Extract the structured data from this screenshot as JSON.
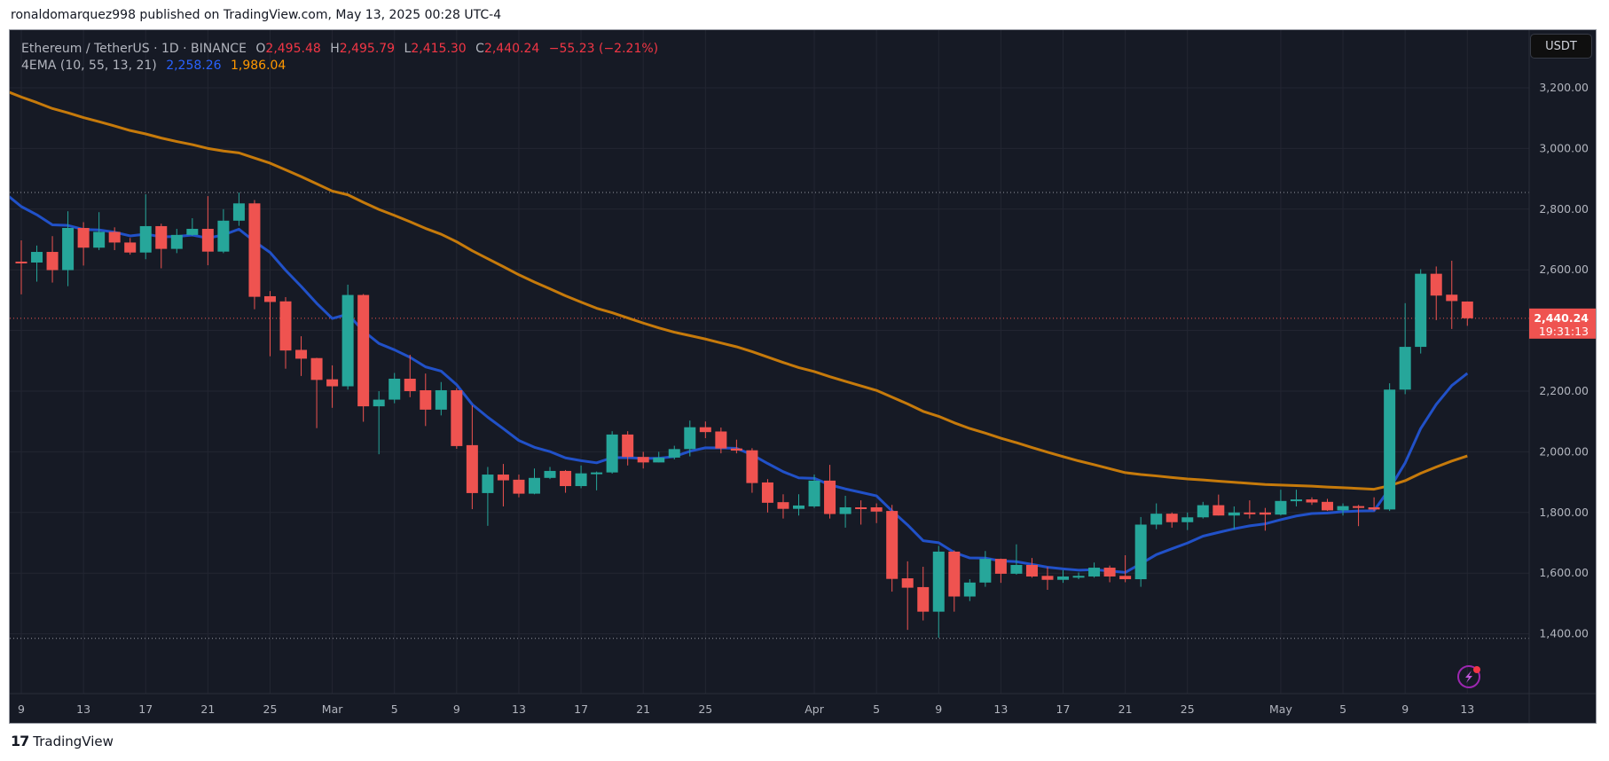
{
  "caption": "ronaldomarquez998 published on TradingView.com, May 13, 2025 00:28 UTC-4",
  "legend": {
    "symbol": "Ethereum / TetherUS · 1D · BINANCE",
    "open_label": "O",
    "open": "2,495.48",
    "high_label": "H",
    "high": "2,495.79",
    "low_label": "L",
    "low": "2,415.30",
    "close_label": "C",
    "close": "2,440.24",
    "change": "−55.23 (−2.21%)",
    "indicator": "4EMA (10, 55, 13, 21)",
    "ema_fast": "2,258.26",
    "ema_slow": "1,986.04"
  },
  "currency_button": "USDT",
  "price_label": {
    "price": "2,440.24",
    "countdown": "19:31:13"
  },
  "logo_text": "TradingView",
  "colors": {
    "up": "#26a69a",
    "down": "#ef5350",
    "ema_fast": "#2151c8",
    "ema_slow": "#c67a0b",
    "bg": "#161a25",
    "grid": "#232632",
    "text": "#b2b5be"
  },
  "icons": {
    "alert": "lightning-icon"
  },
  "chart_data": {
    "type": "candlestick",
    "title": "Ethereum / TetherUS · 1D · BINANCE",
    "ylim": [
      1250,
      3330
    ],
    "y_ticks": [
      "3,200.00",
      "3,000.00",
      "2,800.00",
      "2,600.00",
      "2,200.00",
      "2,000.00",
      "1,800.00",
      "1,600.00",
      "1,400.00"
    ],
    "y_tick_values": [
      3200,
      3000,
      2800,
      2600,
      2200,
      2000,
      1800,
      1600,
      1400
    ],
    "x_ticks": [
      {
        "label": "9",
        "day": 0
      },
      {
        "label": "13",
        "day": 4
      },
      {
        "label": "17",
        "day": 8
      },
      {
        "label": "21",
        "day": 12
      },
      {
        "label": "25",
        "day": 16
      },
      {
        "label": "Mar",
        "day": 20
      },
      {
        "label": "5",
        "day": 24
      },
      {
        "label": "9",
        "day": 28
      },
      {
        "label": "13",
        "day": 32
      },
      {
        "label": "17",
        "day": 36
      },
      {
        "label": "21",
        "day": 40
      },
      {
        "label": "25",
        "day": 44
      },
      {
        "label": "Apr",
        "day": 51
      },
      {
        "label": "5",
        "day": 55
      },
      {
        "label": "9",
        "day": 59
      },
      {
        "label": "13",
        "day": 63
      },
      {
        "label": "17",
        "day": 67
      },
      {
        "label": "21",
        "day": 71
      },
      {
        "label": "25",
        "day": 75
      },
      {
        "label": "May",
        "day": 81
      },
      {
        "label": "5",
        "day": 85
      },
      {
        "label": "9",
        "day": 89
      },
      {
        "label": "13",
        "day": 93
      }
    ],
    "reference_lines": [
      2855,
      1385
    ],
    "last_price": 2440.24,
    "ema_seed": {
      "fast": 2850,
      "slow": 3190
    },
    "ema_periods": [
      10,
      55
    ],
    "ohlc_start": "Feb 9",
    "ohlc": [
      [
        2627,
        2697,
        2519,
        2622
      ],
      [
        2624,
        2680,
        2561,
        2659
      ],
      [
        2659,
        2711,
        2558,
        2599
      ],
      [
        2599,
        2793,
        2546,
        2738
      ],
      [
        2738,
        2757,
        2614,
        2673
      ],
      [
        2673,
        2790,
        2665,
        2725
      ],
      [
        2725,
        2740,
        2665,
        2690
      ],
      [
        2690,
        2705,
        2650,
        2657
      ],
      [
        2657,
        2849,
        2635,
        2744
      ],
      [
        2744,
        2752,
        2605,
        2669
      ],
      [
        2669,
        2735,
        2655,
        2715
      ],
      [
        2715,
        2770,
        2712,
        2735
      ],
      [
        2735,
        2843,
        2615,
        2660
      ],
      [
        2660,
        2800,
        2655,
        2762
      ],
      [
        2762,
        2855,
        2745,
        2819
      ],
      [
        2819,
        2830,
        2470,
        2511
      ],
      [
        2513,
        2530,
        2315,
        2494
      ],
      [
        2496,
        2510,
        2274,
        2334
      ],
      [
        2336,
        2381,
        2250,
        2307
      ],
      [
        2309,
        2310,
        2078,
        2237
      ],
      [
        2239,
        2285,
        2145,
        2216
      ],
      [
        2216,
        2551,
        2205,
        2517
      ],
      [
        2517,
        2520,
        2099,
        2150
      ],
      [
        2150,
        2200,
        1992,
        2172
      ],
      [
        2172,
        2260,
        2160,
        2241
      ],
      [
        2241,
        2320,
        2180,
        2200
      ],
      [
        2203,
        2258,
        2085,
        2139
      ],
      [
        2139,
        2230,
        2120,
        2203
      ],
      [
        2203,
        2210,
        2010,
        2019
      ],
      [
        2022,
        2153,
        1811,
        1864
      ],
      [
        1864,
        1950,
        1756,
        1925
      ],
      [
        1925,
        1960,
        1820,
        1906
      ],
      [
        1908,
        1925,
        1850,
        1862
      ],
      [
        1862,
        1945,
        1860,
        1914
      ],
      [
        1914,
        1950,
        1910,
        1937
      ],
      [
        1937,
        1940,
        1865,
        1887
      ],
      [
        1887,
        1955,
        1880,
        1929
      ],
      [
        1929,
        1935,
        1873,
        1932
      ],
      [
        1932,
        2068,
        1928,
        2057
      ],
      [
        2057,
        2068,
        1955,
        1983
      ],
      [
        1983,
        2000,
        1945,
        1965
      ],
      [
        1965,
        2000,
        1965,
        1981
      ],
      [
        1981,
        2020,
        1975,
        2009
      ],
      [
        2009,
        2103,
        1985,
        2081
      ],
      [
        2081,
        2100,
        2045,
        2065
      ],
      [
        2067,
        2080,
        1995,
        2011
      ],
      [
        2011,
        2040,
        1995,
        2004
      ],
      [
        2005,
        2012,
        1865,
        1897
      ],
      [
        1899,
        1910,
        1800,
        1832
      ],
      [
        1834,
        1860,
        1780,
        1812
      ],
      [
        1812,
        1860,
        1790,
        1823
      ],
      [
        1820,
        1925,
        1815,
        1905
      ],
      [
        1905,
        1957,
        1780,
        1795
      ],
      [
        1795,
        1855,
        1750,
        1817
      ],
      [
        1817,
        1840,
        1760,
        1815
      ],
      [
        1817,
        1830,
        1765,
        1803
      ],
      [
        1805,
        1825,
        1539,
        1581
      ],
      [
        1583,
        1639,
        1413,
        1552
      ],
      [
        1554,
        1621,
        1444,
        1473
      ],
      [
        1473,
        1690,
        1387,
        1671
      ],
      [
        1671,
        1675,
        1473,
        1523
      ],
      [
        1523,
        1580,
        1508,
        1569
      ],
      [
        1569,
        1673,
        1555,
        1647
      ],
      [
        1647,
        1648,
        1568,
        1598
      ],
      [
        1598,
        1695,
        1595,
        1627
      ],
      [
        1627,
        1650,
        1585,
        1589
      ],
      [
        1591,
        1620,
        1545,
        1578
      ],
      [
        1578,
        1610,
        1568,
        1589
      ],
      [
        1586,
        1602,
        1580,
        1591
      ],
      [
        1589,
        1635,
        1585,
        1618
      ],
      [
        1618,
        1625,
        1570,
        1589
      ],
      [
        1591,
        1659,
        1570,
        1580
      ],
      [
        1580,
        1785,
        1555,
        1760
      ],
      [
        1760,
        1830,
        1745,
        1796
      ],
      [
        1796,
        1800,
        1750,
        1768
      ],
      [
        1768,
        1800,
        1742,
        1784
      ],
      [
        1784,
        1835,
        1780,
        1824
      ],
      [
        1824,
        1859,
        1790,
        1790
      ],
      [
        1790,
        1820,
        1745,
        1800
      ],
      [
        1800,
        1840,
        1780,
        1799
      ],
      [
        1800,
        1815,
        1740,
        1793
      ],
      [
        1793,
        1875,
        1790,
        1838
      ],
      [
        1838,
        1875,
        1820,
        1843
      ],
      [
        1843,
        1850,
        1825,
        1833
      ],
      [
        1835,
        1845,
        1805,
        1807
      ],
      [
        1807,
        1830,
        1790,
        1821
      ],
      [
        1821,
        1825,
        1755,
        1815
      ],
      [
        1817,
        1850,
        1805,
        1810
      ],
      [
        1810,
        2226,
        1805,
        2205
      ],
      [
        2205,
        2490,
        2190,
        2346
      ],
      [
        2346,
        2602,
        2324,
        2587
      ],
      [
        2587,
        2611,
        2434,
        2515
      ],
      [
        2518,
        2630,
        2405,
        2497
      ],
      [
        2495.48,
        2495.79,
        2415.3,
        2440.24
      ]
    ]
  }
}
